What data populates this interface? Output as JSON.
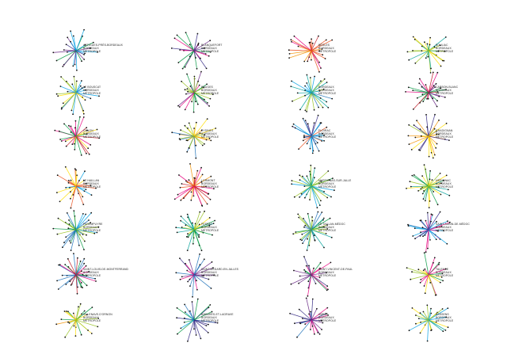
{
  "palette": [
    "#e6007e",
    "#f39200",
    "#ffde00",
    "#95c11f",
    "#009640",
    "#00a19a",
    "#009fe3",
    "#1d71b8",
    "#312783",
    "#662483",
    "#be1622",
    "#e94e1b"
  ],
  "glyphs": [
    {
      "name": "ARTIGUES-PRÈS-BORDEAUX",
      "lines": [
        "BORDEAUX",
        "MÉTROPOLE"
      ],
      "colors": [
        "#009fe3",
        "#312783",
        "#662483",
        "#009640"
      ]
    },
    {
      "name": "BLANQUEFORT",
      "lines": [
        "BORDEAUX",
        "MÉTROPOLE"
      ],
      "colors": [
        "#e6007e",
        "#662483",
        "#009640",
        "#312783"
      ]
    },
    {
      "name": "BÈGLES",
      "lines": [
        "BORDEAUX",
        "MÉTROPOLE"
      ],
      "colors": [
        "#f39200",
        "#e94e1b",
        "#be1622",
        "#e6007e"
      ]
    },
    {
      "name": "BOULIAC",
      "lines": [
        "BORDEAUX",
        "MÉTROPOLE"
      ],
      "colors": [
        "#95c11f",
        "#009640",
        "#ffde00",
        "#00a19a"
      ]
    },
    {
      "name": "LE BOUSCAT",
      "lines": [
        "BORDEAUX",
        "MÉTROPOLE"
      ],
      "colors": [
        "#009fe3",
        "#1d71b8",
        "#95c11f",
        "#ffde00"
      ]
    },
    {
      "name": "BRUGES",
      "lines": [
        "BORDEAUX",
        "MÉTROPOLE"
      ],
      "colors": [
        "#009640",
        "#662483",
        "#e6007e",
        "#95c11f"
      ]
    },
    {
      "name": "BORDEAUX",
      "lines": [
        "BORDEAUX",
        "MÉTROPOLE"
      ],
      "colors": [
        "#00a19a",
        "#009fe3",
        "#1d71b8",
        "#95c11f"
      ]
    },
    {
      "name": "CARBON-BLANC",
      "lines": [
        "BORDEAUX",
        "MÉTROPOLE"
      ],
      "colors": [
        "#e6007e",
        "#be1622",
        "#662483",
        "#009640"
      ]
    },
    {
      "name": "CENON",
      "lines": [
        "BORDEAUX",
        "MÉTROPOLE"
      ],
      "colors": [
        "#e6007e",
        "#be1622",
        "#009640",
        "#ffde00"
      ]
    },
    {
      "name": "EYSINES",
      "lines": [
        "BORDEAUX",
        "MÉTROPOLE"
      ],
      "colors": [
        "#f39200",
        "#ffde00",
        "#1d71b8",
        "#95c11f"
      ]
    },
    {
      "name": "FLOIRAC",
      "lines": [
        "BORDEAUX",
        "MÉTROPOLE"
      ],
      "colors": [
        "#1d71b8",
        "#009fe3",
        "#312783",
        "#e94e1b"
      ]
    },
    {
      "name": "GRADIGNAN",
      "lines": [
        "BORDEAUX",
        "MÉTROPOLE"
      ],
      "colors": [
        "#ffde00",
        "#f39200",
        "#95c11f",
        "#312783"
      ]
    },
    {
      "name": "LE HAILLAN",
      "lines": [
        "BORDEAUX",
        "MÉTROPOLE"
      ],
      "colors": [
        "#f39200",
        "#e94e1b",
        "#ffde00",
        "#009fe3"
      ]
    },
    {
      "name": "LORMONT",
      "lines": [
        "BORDEAUX",
        "MÉTROPOLE"
      ],
      "colors": [
        "#be1622",
        "#e6007e",
        "#e94e1b",
        "#f39200"
      ]
    },
    {
      "name": "MARTIGNAS-SUR-JALLE",
      "lines": [
        "BORDEAUX",
        "MÉTROPOLE"
      ],
      "colors": [
        "#009fe3",
        "#00a19a",
        "#009640",
        "#95c11f"
      ]
    },
    {
      "name": "MÉRIGNAC",
      "lines": [
        "BORDEAUX",
        "MÉTROPOLE"
      ],
      "colors": [
        "#00a19a",
        "#009640",
        "#95c11f",
        "#ffde00"
      ]
    },
    {
      "name": "PAREMPUYRE",
      "lines": [
        "BORDEAUX",
        "MÉTROPOLE"
      ],
      "colors": [
        "#009fe3",
        "#1d71b8",
        "#95c11f",
        "#009640"
      ]
    },
    {
      "name": "PESSAC",
      "lines": [
        "BORDEAUX",
        "MÉTROPOLE"
      ],
      "colors": [
        "#95c11f",
        "#009640",
        "#ffde00",
        "#00a19a"
      ]
    },
    {
      "name": "LE TAILLAN-MÉDOC",
      "lines": [
        "BORDEAUX",
        "MÉTROPOLE"
      ],
      "colors": [
        "#009640",
        "#95c11f",
        "#1d71b8",
        "#00a19a"
      ]
    },
    {
      "name": "SAINT-AUBIN-DE-MÉDOC",
      "lines": [
        "BORDEAUX",
        "MÉTROPOLE"
      ],
      "colors": [
        "#1d71b8",
        "#312783",
        "#009fe3",
        "#e6007e"
      ]
    },
    {
      "name": "SAINT-LOUIS-DE-MONTFERRAND",
      "lines": [
        "BORDEAUX",
        "MÉTROPOLE"
      ],
      "colors": [
        "#be1622",
        "#e6007e",
        "#009640",
        "#1d71b8"
      ]
    },
    {
      "name": "SAINT-MÉDARD-EN-JALLES",
      "lines": [
        "BORDEAUX",
        "MÉTROPOLE"
      ],
      "colors": [
        "#312783",
        "#662483",
        "#e6007e",
        "#1d71b8"
      ]
    },
    {
      "name": "SAINT-VINCENT-DE-PAUL",
      "lines": [
        "BORDEAUX",
        "MÉTROPOLE"
      ],
      "colors": [
        "#662483",
        "#e6007e",
        "#312783",
        "#009640"
      ]
    },
    {
      "name": "TALENCE",
      "lines": [
        "BORDEAUX",
        "MÉTROPOLE"
      ],
      "colors": [
        "#95c11f",
        "#009640",
        "#ffde00",
        "#e6007e"
      ]
    },
    {
      "name": "VILLENAVE-D'ORNON",
      "lines": [
        "BORDEAUX",
        "MÉTROPOLE"
      ],
      "colors": [
        "#95c11f",
        "#ffde00",
        "#009640",
        "#f39200"
      ]
    },
    {
      "name": "AMBARÈS-ET-LAGRAVE",
      "lines": [
        "BORDEAUX",
        "MÉTROPOLE"
      ],
      "colors": [
        "#009640",
        "#1d71b8",
        "#009fe3",
        "#312783"
      ]
    },
    {
      "name": "AMBÈS",
      "lines": [
        "BORDEAUX",
        "MÉTROPOLE"
      ],
      "colors": [
        "#662483",
        "#312783",
        "#1d71b8",
        "#e6007e"
      ]
    },
    {
      "name": "BASSENS",
      "lines": [
        "BORDEAUX",
        "MÉTROPOLE"
      ],
      "colors": [
        "#00a19a",
        "#009fe3",
        "#95c11f",
        "#ffde00"
      ]
    }
  ]
}
